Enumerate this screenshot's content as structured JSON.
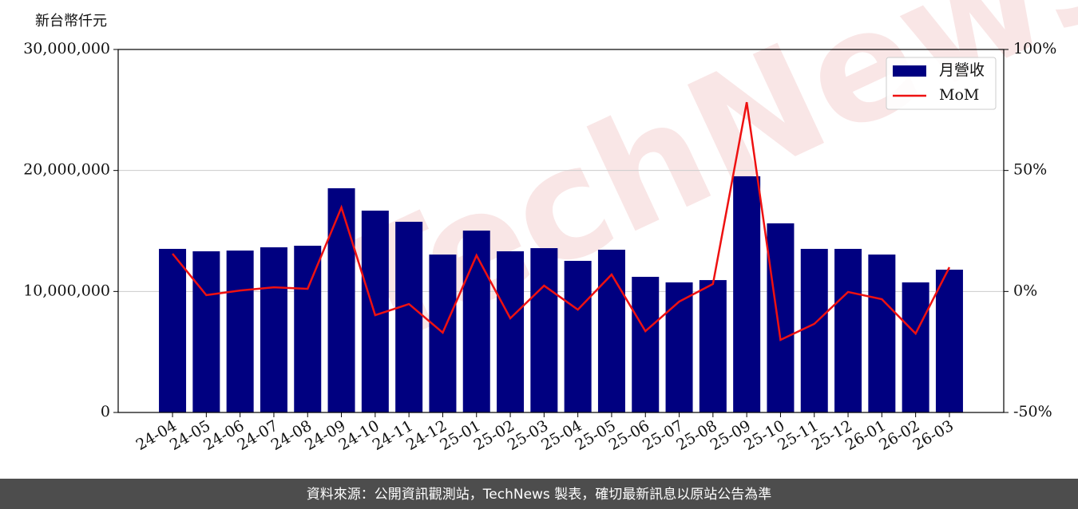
{
  "chart_data": {
    "type": "bar",
    "y_label": "新台幣仟元",
    "footer": "資料來源：公開資訊觀測站，TechNews 製表，確切最新訊息以原站公告為準",
    "watermark": "TechNews",
    "categories": [
      "24-04",
      "24-05",
      "24-06",
      "24-07",
      "24-08",
      "24-09",
      "24-10",
      "24-11",
      "24-12",
      "25-01",
      "25-02",
      "25-03",
      "25-04",
      "25-05",
      "25-06",
      "25-07",
      "25-08",
      "25-09",
      "25-10",
      "25-11",
      "25-12",
      "26-01",
      "26-02",
      "26-03"
    ],
    "series": [
      {
        "name": "月營收",
        "type": "bar",
        "color": "#000080",
        "values": [
          13520000,
          13320000,
          13380000,
          13650000,
          13780000,
          18530000,
          16680000,
          15760000,
          13050000,
          15030000,
          13320000,
          13580000,
          12530000,
          13450000,
          11210000,
          10750000,
          10940000,
          19520000,
          15630000,
          13520000,
          13520000,
          13050000,
          10750000,
          11800000
        ]
      },
      {
        "name": "MoM",
        "type": "line",
        "axis": "y2",
        "color": "#ee1111",
        "values": [
          15.6,
          -1.5,
          0.4,
          1.7,
          1.1,
          34.7,
          -9.8,
          -5.2,
          -17.0,
          14.9,
          -11.1,
          2.4,
          -7.5,
          7.0,
          -16.4,
          -4.2,
          3.1,
          78.2,
          -20.0,
          -13.4,
          -0.2,
          -3.2,
          -17.4,
          10.0
        ]
      }
    ],
    "ylim": [
      0,
      30000000
    ],
    "yticks": [
      0,
      {
        "value": 10000000,
        "label": "10,000,000"
      },
      {
        "value": 20000000,
        "label": "20,000,000"
      },
      {
        "value": 30000000,
        "label": "30,000,000"
      }
    ],
    "y2lim": [
      -50,
      100
    ],
    "y2ticks": [
      {
        "value": -50,
        "label": "-50%"
      },
      {
        "value": 0,
        "label": "0%"
      },
      {
        "value": 50,
        "label": "50%"
      },
      {
        "value": 100,
        "label": "100%"
      }
    ],
    "grid": true,
    "legend": "upper right"
  }
}
